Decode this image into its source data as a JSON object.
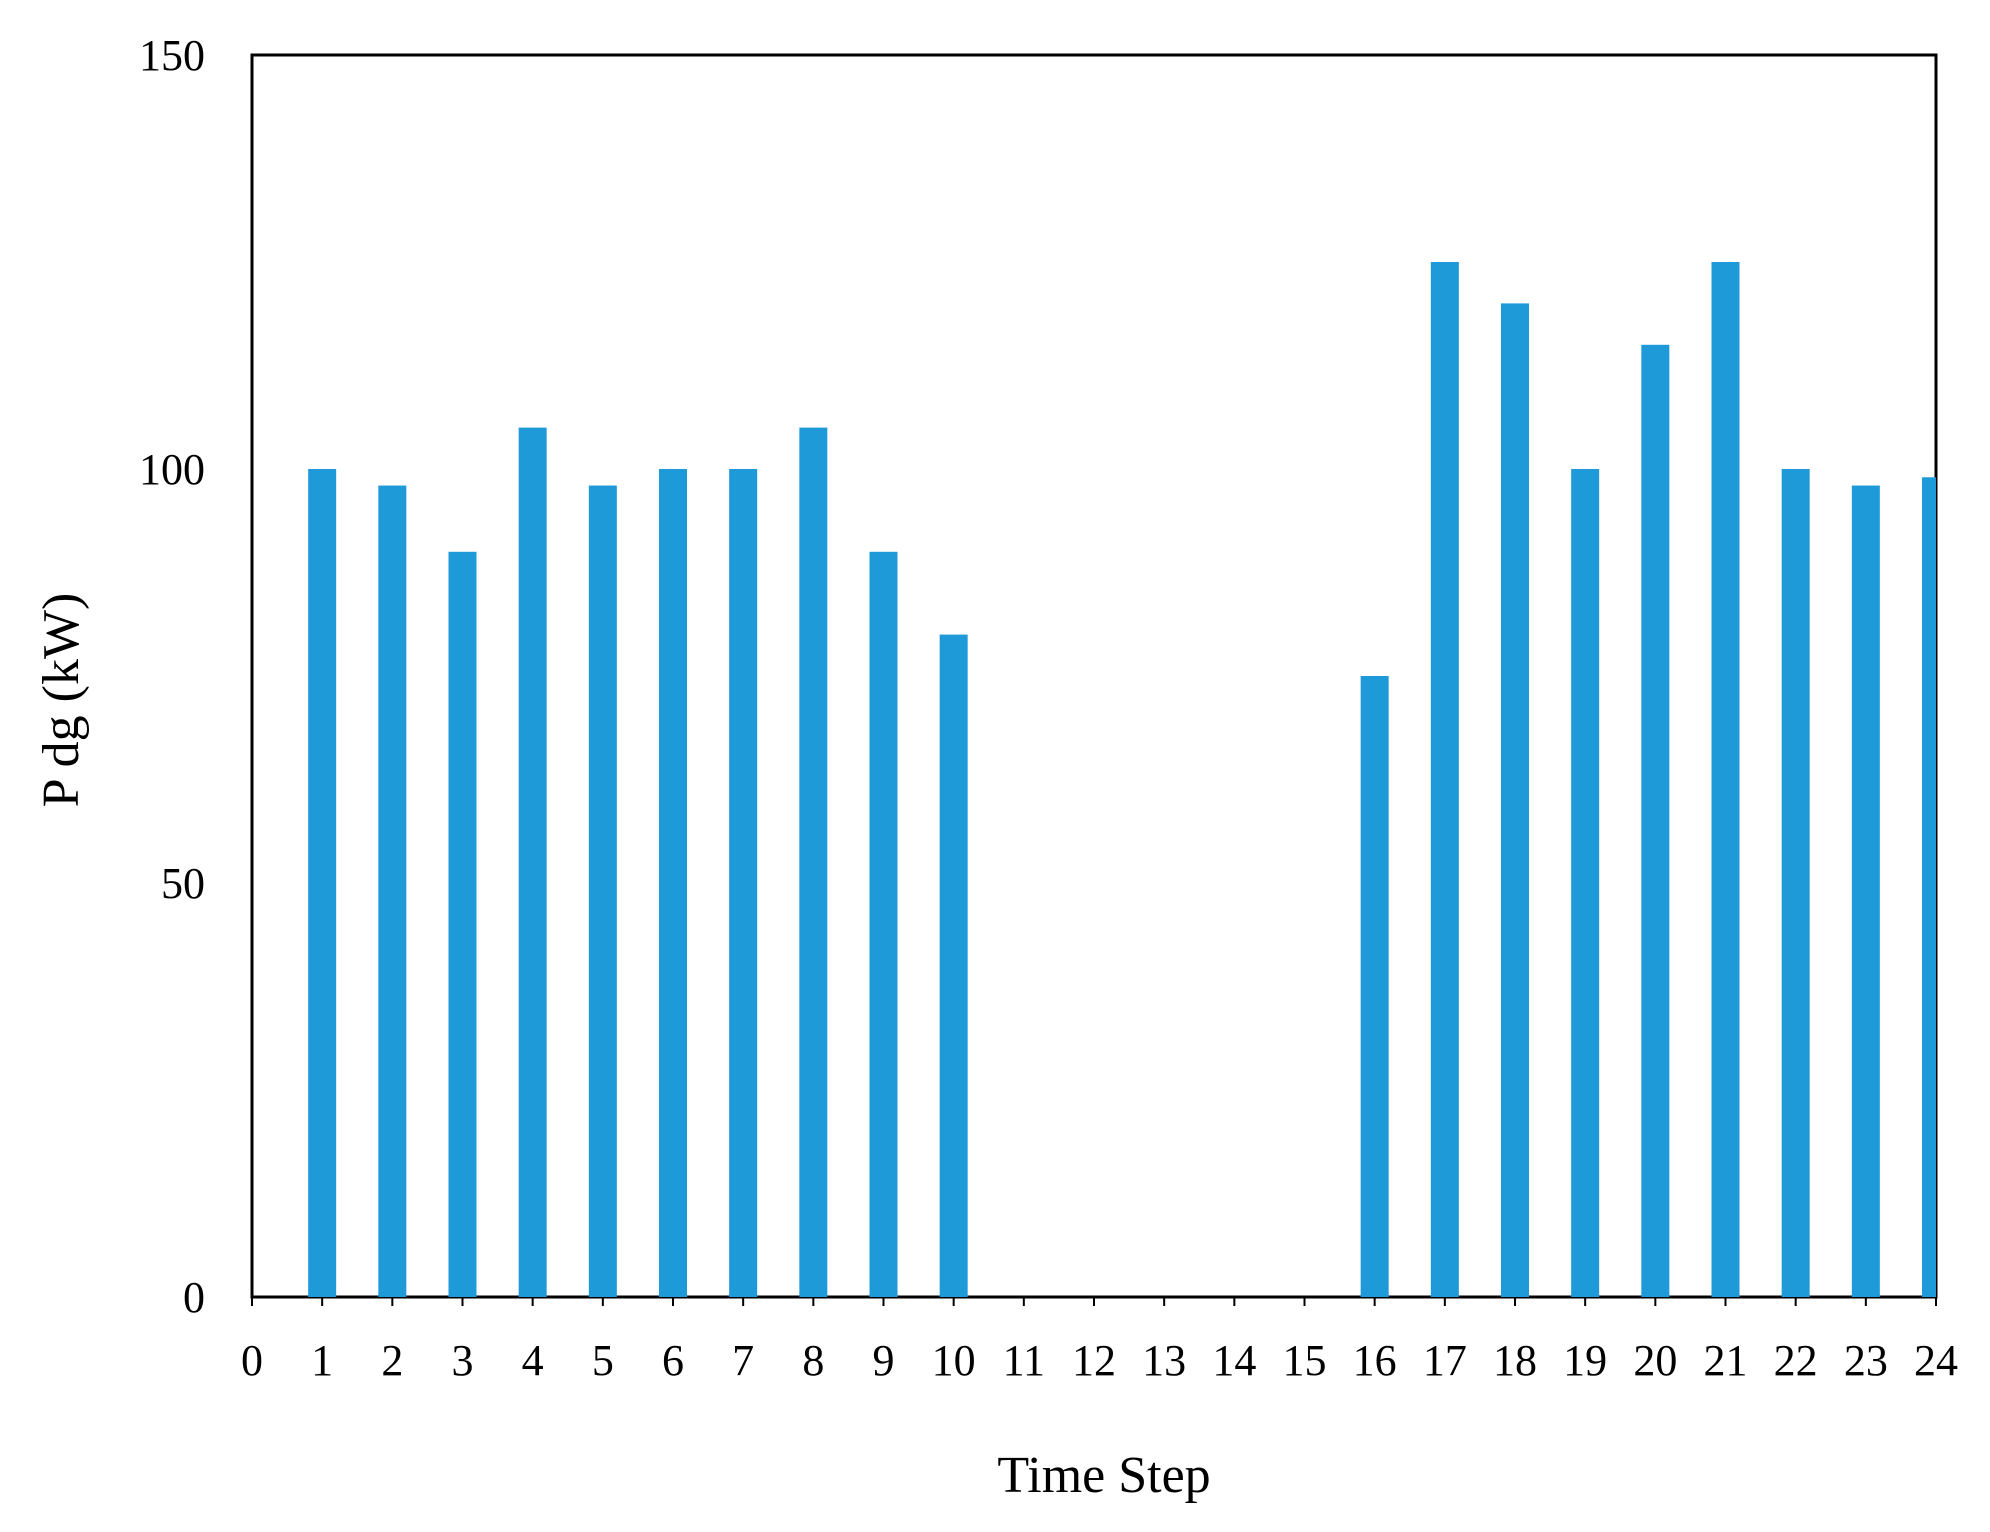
{
  "chart_data": {
    "type": "bar",
    "title": "",
    "xlabel": "Time Step",
    "ylabel": "P dg  (kW)",
    "x": [
      1,
      2,
      3,
      4,
      5,
      6,
      7,
      8,
      9,
      10,
      11,
      12,
      13,
      14,
      15,
      16,
      17,
      18,
      19,
      20,
      21,
      22,
      23,
      24
    ],
    "values": [
      100,
      98,
      90,
      105,
      98,
      100,
      100,
      105,
      90,
      80,
      0,
      0,
      0,
      0,
      0,
      75,
      125,
      120,
      100,
      115,
      125,
      100,
      98,
      99
    ],
    "xlim": [
      0,
      24
    ],
    "ylim": [
      0,
      150
    ],
    "x_ticks": [
      "0",
      "1",
      "2",
      "3",
      "4",
      "5",
      "6",
      "7",
      "8",
      "9",
      "10",
      "11",
      "12",
      "13",
      "14",
      "15",
      "16",
      "17",
      "18",
      "19",
      "20",
      "21",
      "22",
      "23",
      "24"
    ],
    "y_ticks": [
      "0",
      "50",
      "100",
      "150"
    ],
    "grid": false,
    "legend": "none",
    "bar_color": "#1f9ad8",
    "axis_color": "#000000"
  }
}
